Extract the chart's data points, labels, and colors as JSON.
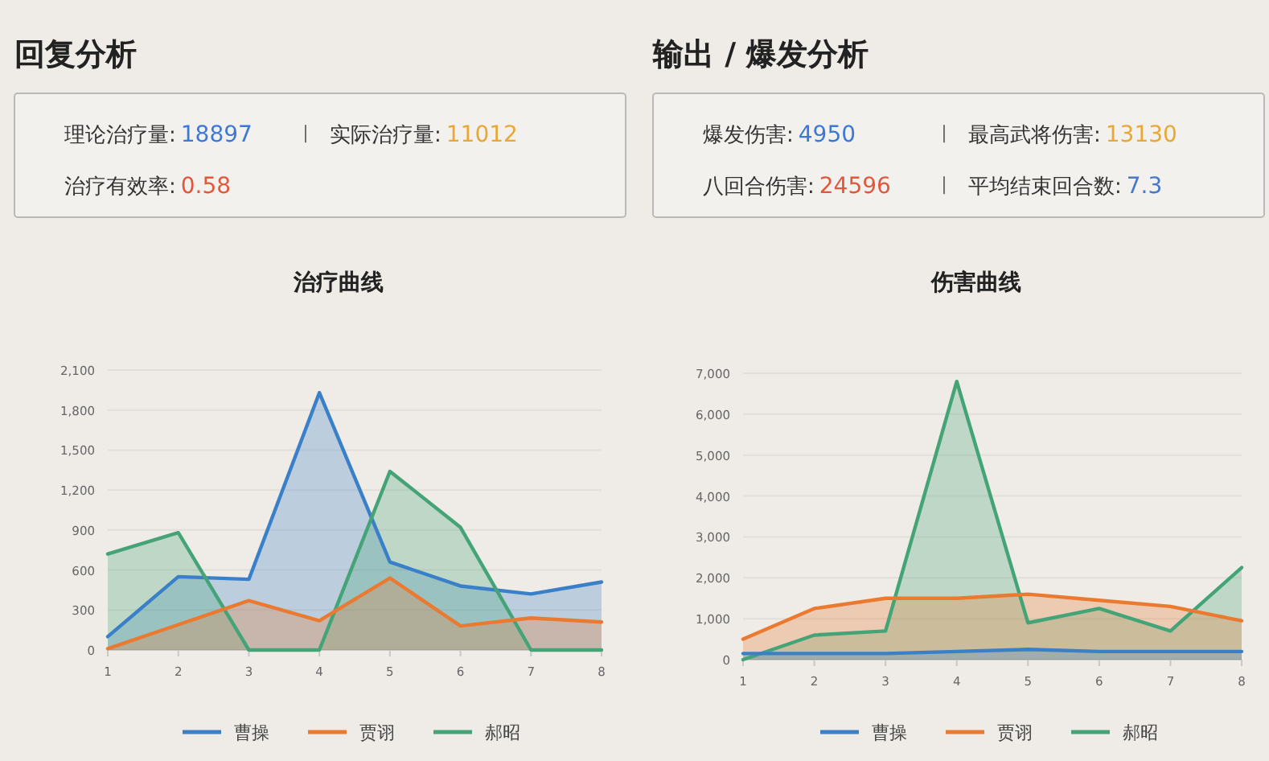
{
  "chart_data": [
    {
      "type": "other",
      "title": "回复分析",
      "annotations": [
        "理论治疗量:",
        "18897",
        "|",
        "实际治疗量:",
        "11012",
        "治疗有效率:",
        "0.58"
      ],
      "colors": [
        null,
        "#3b78d8",
        null,
        null,
        "#e8a838",
        null,
        "#e0583a"
      ]
    },
    {
      "type": "area",
      "title": "治疗曲线",
      "categories": [
        "1",
        "2",
        "3",
        "4",
        "5",
        "6",
        "7",
        "8"
      ],
      "ylim": [
        0,
        2100
      ],
      "yticks": [
        0,
        300,
        600,
        900,
        {
          "value": 1200,
          "label": "1,200"
        },
        {
          "value": 1500,
          "label": "1,500"
        },
        {
          "value": 1800,
          "label": "1,800"
        },
        {
          "value": 2100,
          "label": "2,100"
        }
      ],
      "grid": "y",
      "legend": "bottom",
      "series": [
        {
          "name": "曹操",
          "color": "#3a80c8",
          "values": [
            100,
            550,
            530,
            1930,
            660,
            480,
            420,
            510
          ]
        },
        {
          "name": "贾诩",
          "color": "#ea7a30",
          "values": [
            10,
            190,
            370,
            220,
            540,
            180,
            240,
            210
          ]
        },
        {
          "name": "郝昭",
          "color": "#45a477",
          "values": [
            720,
            880,
            0,
            0,
            1340,
            920,
            0,
            0
          ]
        }
      ]
    },
    {
      "type": "other",
      "title": "输出 / 爆发分析",
      "annotations": [
        "爆发伤害:",
        "4950",
        "|",
        "最高武将伤害:",
        "13130",
        "八回合伤害:",
        "24596",
        "|",
        "平均结束回合数:",
        "7.3"
      ],
      "colors": [
        null,
        "#3b78d8",
        null,
        null,
        "#e8a838",
        null,
        "#e0583a",
        null,
        null,
        "#4a78c8"
      ]
    },
    {
      "type": "area",
      "title": "伤害曲线",
      "categories": [
        "1",
        "2",
        "3",
        "4",
        "5",
        "6",
        "7",
        "8"
      ],
      "ylim": [
        0,
        7000
      ],
      "yticks": [
        0,
        {
          "value": 1000,
          "label": "1,000"
        },
        {
          "value": 2000,
          "label": "2,000"
        },
        {
          "value": 3000,
          "label": "3,000"
        },
        {
          "value": 4000,
          "label": "4,000"
        },
        {
          "value": 5000,
          "label": "5,000"
        },
        {
          "value": 6000,
          "label": "6,000"
        },
        {
          "value": 7000,
          "label": "7,000"
        }
      ],
      "grid": "y",
      "legend": "bottom",
      "series": [
        {
          "name": "曹操",
          "color": "#3a80c8",
          "values": [
            150,
            150,
            150,
            200,
            250,
            200,
            200,
            200
          ]
        },
        {
          "name": "贾诩",
          "color": "#ea7a30",
          "values": [
            500,
            1250,
            1500,
            1500,
            1600,
            1450,
            1300,
            950
          ]
        },
        {
          "name": "郝昭",
          "color": "#45a477",
          "values": [
            0,
            600,
            700,
            6800,
            900,
            1250,
            700,
            2250
          ]
        }
      ]
    }
  ]
}
